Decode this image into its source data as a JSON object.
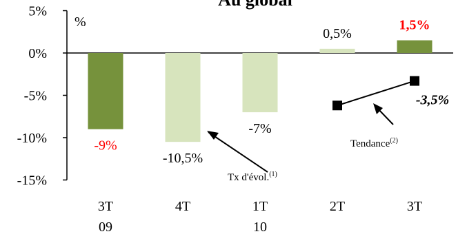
{
  "chart_data": {
    "type": "bar",
    "title": "Au global",
    "ylabel": "%",
    "ylim": [
      -15,
      5
    ],
    "yticks": [
      5,
      0,
      -5,
      -10,
      -15
    ],
    "ytick_labels": [
      "5%",
      "0%",
      "-5%",
      "-10%",
      "-15%"
    ],
    "categories": [
      {
        "top": "3T",
        "bottom": "09"
      },
      {
        "top": "4T",
        "bottom": ""
      },
      {
        "top": "1T",
        "bottom": "10"
      },
      {
        "top": "2T",
        "bottom": ""
      },
      {
        "top": "3T",
        "bottom": ""
      }
    ],
    "values": [
      -9,
      -10.5,
      -7,
      0.5,
      1.5
    ],
    "data_labels": [
      "-9%",
      "-10,5%",
      "-7%",
      "0,5%",
      "1,5%"
    ],
    "label_colors": [
      "#ff0000",
      "#000000",
      "#000000",
      "#000000",
      "#ff0000"
    ],
    "bar_colors": [
      "#76923c",
      "#d7e4bd",
      "#d7e4bd",
      "#d7e4bd",
      "#76923c"
    ],
    "trend": {
      "x": [
        3,
        4
      ],
      "y": [
        -6.2,
        -3.3
      ],
      "label": "-3,5%"
    },
    "annotations": [
      {
        "text": "Tx d'évol.",
        "sup": "(1)"
      },
      {
        "text": "Tendance",
        "sup": "(2)"
      }
    ]
  }
}
